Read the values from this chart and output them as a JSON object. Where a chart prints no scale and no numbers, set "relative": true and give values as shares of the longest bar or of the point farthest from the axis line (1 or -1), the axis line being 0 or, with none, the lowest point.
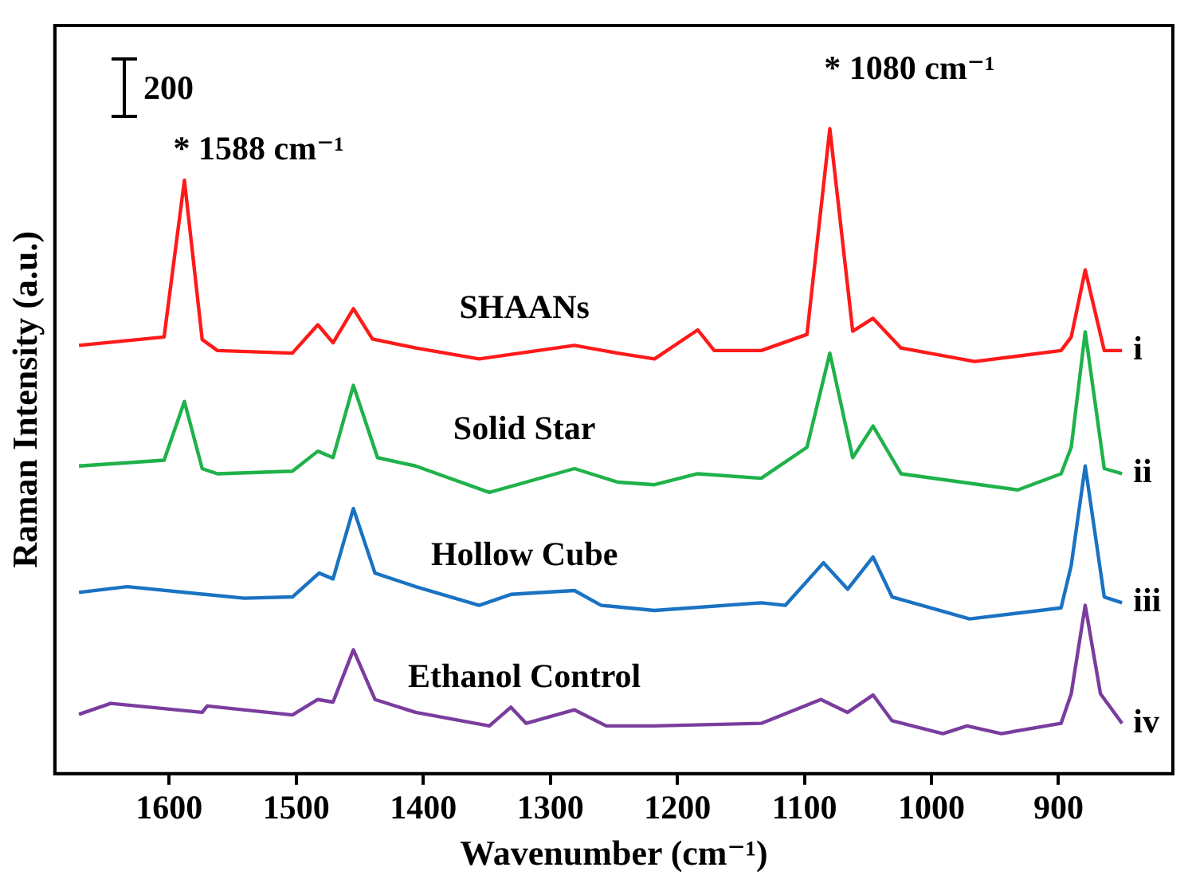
{
  "chart_data": {
    "type": "line",
    "relative": true,
    "xlabel": "Wavenumber (cm⁻¹)",
    "ylabel": "Raman Intensity (a.u.)",
    "xlim": [
      1690,
      810
    ],
    "xticks": [
      1600,
      1500,
      1400,
      1300,
      1200,
      1100,
      1000,
      900
    ],
    "grid": false,
    "legend": false,
    "marker": "none",
    "line_style": "solid",
    "series": [
      {
        "name": "SHAANs",
        "color": "#ff1a1a",
        "x": [
          1671,
          1604,
          1588,
          1574,
          1562,
          1503,
          1483,
          1471,
          1455,
          1440,
          1406,
          1356,
          1281,
          1247,
          1218,
          1184,
          1171,
          1134,
          1098,
          1080,
          1062,
          1046,
          1024,
          966,
          898,
          890,
          879,
          864,
          850
        ],
        "values": [
          0.664,
          0.677,
          0.92,
          0.673,
          0.656,
          0.652,
          0.696,
          0.668,
          0.721,
          0.674,
          0.66,
          0.643,
          0.664,
          0.652,
          0.643,
          0.688,
          0.656,
          0.656,
          0.681,
          1.0,
          0.686,
          0.706,
          0.66,
          0.639,
          0.656,
          0.677,
          0.781,
          0.656,
          0.656
        ]
      },
      {
        "name": "Solid Star",
        "color": "#1fb24a",
        "x": [
          1671,
          1604,
          1588,
          1574,
          1562,
          1503,
          1483,
          1471,
          1455,
          1436,
          1406,
          1348,
          1281,
          1247,
          1218,
          1184,
          1134,
          1098,
          1080,
          1062,
          1046,
          1024,
          932,
          898,
          890,
          879,
          864,
          850
        ],
        "values": [
          0.477,
          0.486,
          0.577,
          0.473,
          0.465,
          0.469,
          0.5,
          0.49,
          0.602,
          0.49,
          0.477,
          0.436,
          0.473,
          0.452,
          0.448,
          0.465,
          0.458,
          0.506,
          0.652,
          0.49,
          0.539,
          0.465,
          0.44,
          0.465,
          0.506,
          0.685,
          0.473,
          0.465
        ]
      },
      {
        "name": "Hollow Cube",
        "color": "#1a72c2",
        "x": [
          1671,
          1633,
          1541,
          1503,
          1482,
          1471,
          1455,
          1438,
          1406,
          1356,
          1331,
          1281,
          1260,
          1218,
          1134,
          1115,
          1085,
          1066,
          1046,
          1031,
          970,
          898,
          890,
          879,
          864,
          850
        ],
        "values": [
          0.281,
          0.29,
          0.272,
          0.274,
          0.311,
          0.302,
          0.411,
          0.311,
          0.29,
          0.261,
          0.278,
          0.284,
          0.261,
          0.253,
          0.265,
          0.261,
          0.327,
          0.286,
          0.336,
          0.274,
          0.24,
          0.257,
          0.323,
          0.477,
          0.274,
          0.265
        ]
      },
      {
        "name": "Ethanol Control",
        "color": "#7a3d9e",
        "x": [
          1671,
          1646,
          1574,
          1570,
          1503,
          1483,
          1471,
          1455,
          1438,
          1406,
          1348,
          1331,
          1319,
          1281,
          1256,
          1218,
          1134,
          1087,
          1066,
          1046,
          1031,
          991,
          972,
          945,
          898,
          890,
          879,
          867,
          850
        ],
        "values": [
          0.092,
          0.109,
          0.095,
          0.105,
          0.091,
          0.115,
          0.111,
          0.192,
          0.115,
          0.095,
          0.074,
          0.103,
          0.078,
          0.099,
          0.074,
          0.074,
          0.078,
          0.115,
          0.095,
          0.122,
          0.082,
          0.062,
          0.074,
          0.062,
          0.078,
          0.124,
          0.261,
          0.124,
          0.078
        ]
      }
    ],
    "annotations": [
      "200",
      "* 1588 cm⁻¹",
      "* 1080 cm⁻¹",
      "i",
      "ii",
      "iii",
      "iv"
    ]
  }
}
